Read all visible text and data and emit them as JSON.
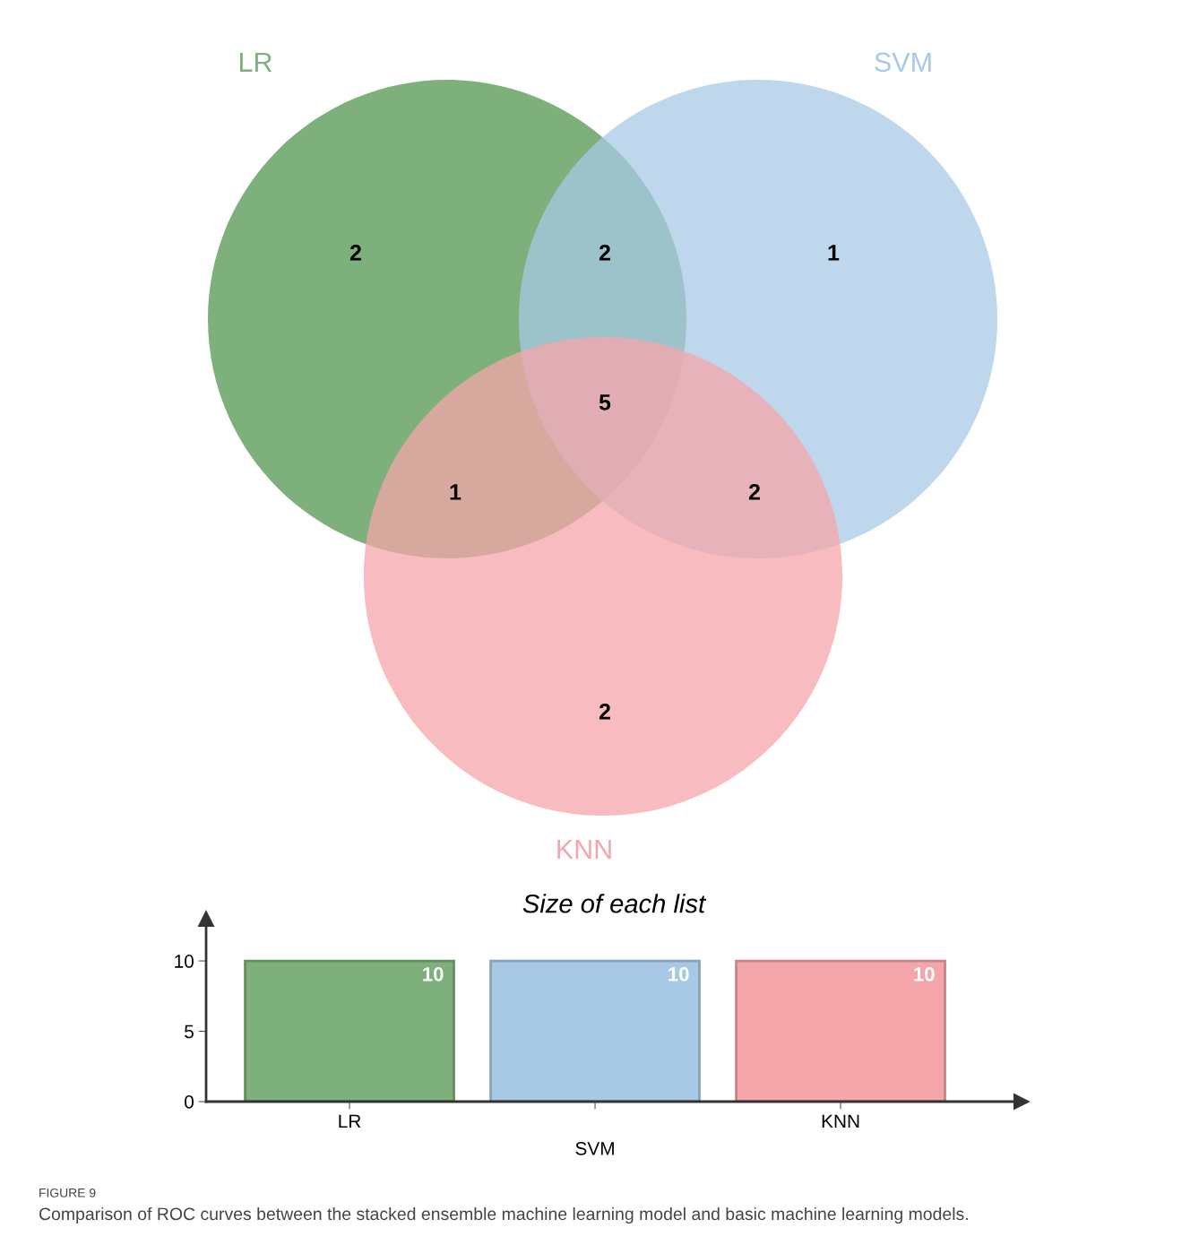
{
  "chart_data": [
    {
      "type": "other",
      "series": [
        {
          "name": "LR",
          "color": "#7db07a"
        },
        {
          "name": "SVM",
          "color": "#a8c9e6"
        },
        {
          "name": "KNN",
          "color": "#f5a6ab"
        }
      ],
      "annotations": [
        "2",
        "2",
        "1",
        "5",
        "1",
        "2",
        "2"
      ]
    },
    {
      "type": "bar",
      "title": "Size of each list",
      "categories": [
        "LR",
        "SVM",
        "KNN"
      ],
      "values": [
        10,
        10,
        10
      ],
      "colors": [
        "#7db07a",
        "#a8c9e6",
        "#f5a6ab"
      ],
      "ylim": [
        0,
        13
      ],
      "yticks": [
        0,
        5,
        10
      ],
      "data_labels": true,
      "grid": false,
      "legend": false,
      "annotations": [
        "FIGURE 9",
        "Comparison of ROC curves between the stacked ensemble machine learning model and basic machine learning models."
      ]
    }
  ]
}
